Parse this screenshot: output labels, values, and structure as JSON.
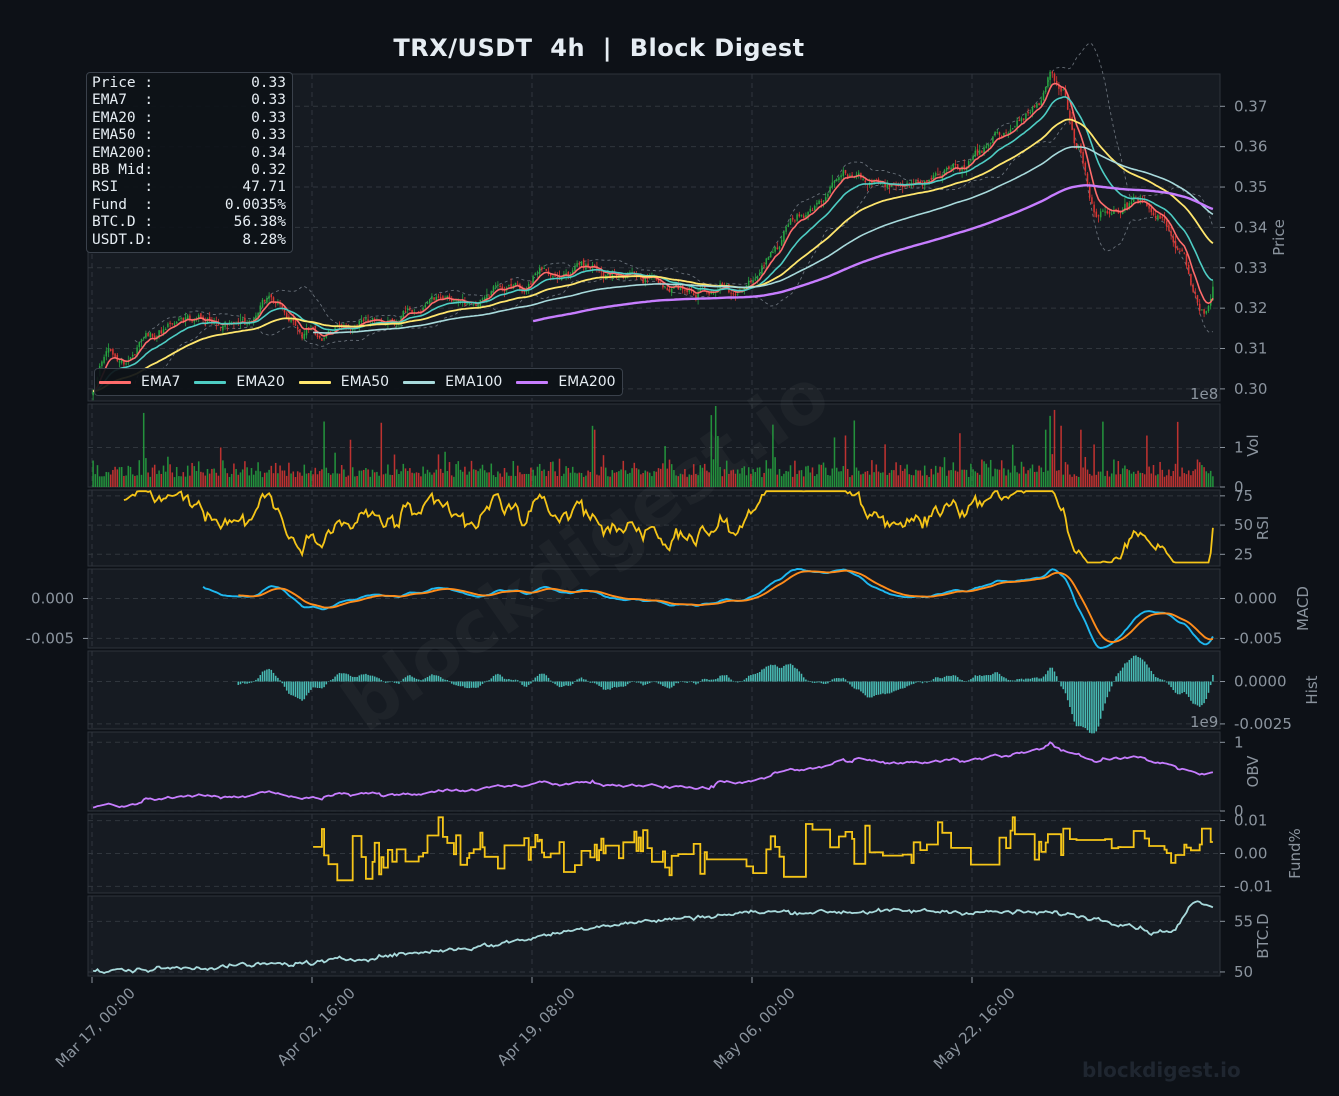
{
  "title": "TRX/USDT  4h  |  Block Digest",
  "watermark": "blockdigest.io",
  "diagonal_watermark": "blockdigest.io",
  "info_box": [
    {
      "label": "Price :",
      "value": "0.33"
    },
    {
      "label": "EMA7  :",
      "value": "0.33"
    },
    {
      "label": "EMA20 :",
      "value": "0.33"
    },
    {
      "label": "EMA50 :",
      "value": "0.33"
    },
    {
      "label": "EMA200:",
      "value": "0.34"
    },
    {
      "label": "BB Mid:",
      "value": "0.32"
    },
    {
      "label": "RSI   :",
      "value": "47.71"
    },
    {
      "label": "Fund  :",
      "value": "0.0035%"
    },
    {
      "label": "BTC.D :",
      "value": "56.38%"
    },
    {
      "label": "USDT.D:",
      "value": "8.28%"
    }
  ],
  "legend": [
    {
      "name": "EMA7",
      "color": "#ff6b6b"
    },
    {
      "name": "EMA20",
      "color": "#4ecdc4"
    },
    {
      "name": "EMA50",
      "color": "#ffe66d"
    },
    {
      "name": "EMA100",
      "color": "#a8dadc"
    },
    {
      "name": "EMA200",
      "color": "#c77dff"
    }
  ],
  "colors": {
    "background": "#0d1117",
    "panel": "#161b22",
    "grid": "#30363d",
    "text": "#8b949e",
    "up": "#26a641",
    "down": "#da3633",
    "rsi": "#f5c518",
    "macd": "#1fb8f0",
    "signal": "#ff8c1a",
    "hist": "#4ecdc4",
    "obv": "#c77dff",
    "funding": "#f5c518",
    "btcd": "#a8dadc"
  },
  "chart_data": {
    "type": "line",
    "x_axis": {
      "tick_labels": [
        "Mar 17, 00:00",
        "Apr 02, 16:00",
        "Apr 19, 08:00",
        "May 06, 00:00",
        "May 22, 16:00"
      ],
      "candle_count": 510,
      "tick_positions": [
        0,
        100,
        200,
        300,
        400
      ]
    },
    "panels": [
      {
        "name": "price",
        "ylabel": "Price",
        "ylim": [
          0.297,
          0.378
        ],
        "ticks": [
          0.3,
          0.31,
          0.32,
          0.33,
          0.34,
          0.35,
          0.36,
          0.37
        ],
        "tick_labels": [
          "0.30",
          "0.31",
          "0.32",
          "0.33",
          "0.34",
          "0.35",
          "0.36",
          "0.37"
        ],
        "close_anchors": [
          [
            0,
            0.299
          ],
          [
            5,
            0.309
          ],
          [
            15,
            0.306
          ],
          [
            25,
            0.312
          ],
          [
            40,
            0.316
          ],
          [
            55,
            0.318
          ],
          [
            70,
            0.317
          ],
          [
            80,
            0.323
          ],
          [
            88,
            0.319
          ],
          [
            95,
            0.316
          ],
          [
            110,
            0.316
          ],
          [
            130,
            0.316
          ],
          [
            150,
            0.319
          ],
          [
            170,
            0.32
          ],
          [
            190,
            0.325
          ],
          [
            210,
            0.328
          ],
          [
            225,
            0.331
          ],
          [
            235,
            0.328
          ],
          [
            245,
            0.33
          ],
          [
            260,
            0.324
          ],
          [
            275,
            0.325
          ],
          [
            290,
            0.324
          ],
          [
            300,
            0.326
          ],
          [
            310,
            0.335
          ],
          [
            320,
            0.343
          ],
          [
            330,
            0.347
          ],
          [
            340,
            0.351
          ],
          [
            360,
            0.351
          ],
          [
            375,
            0.351
          ],
          [
            395,
            0.356
          ],
          [
            410,
            0.362
          ],
          [
            420,
            0.366
          ],
          [
            430,
            0.371
          ],
          [
            435,
            0.377
          ],
          [
            440,
            0.372
          ],
          [
            448,
            0.361
          ],
          [
            455,
            0.345
          ],
          [
            465,
            0.343
          ],
          [
            475,
            0.347
          ],
          [
            485,
            0.342
          ],
          [
            495,
            0.335
          ],
          [
            500,
            0.326
          ],
          [
            505,
            0.32
          ],
          [
            510,
            0.327
          ]
        ],
        "legend_location": "lower-left",
        "exponent_label": "1e8"
      },
      {
        "name": "volume",
        "ylabel": "Vol",
        "ticks": [
          0,
          1
        ],
        "tick_labels": [
          "0",
          "1"
        ],
        "ylim": [
          0,
          2.1
        ]
      },
      {
        "name": "rsi",
        "ylabel": "RSI",
        "ticks": [
          25,
          50,
          75
        ],
        "tick_labels": [
          "25",
          "50",
          "75"
        ],
        "ylim": [
          15,
          80
        ],
        "last": 47.71
      },
      {
        "name": "macd",
        "ylabel": "MACD",
        "ticks": [
          0.0,
          -0.005
        ],
        "tick_labels": [
          "0.000",
          "-0.005"
        ],
        "ylim": [
          -0.0062,
          0.0037
        ],
        "series": [
          "MACD",
          "Signal"
        ]
      },
      {
        "name": "hist",
        "ylabel": "Hist",
        "ticks": [
          0.0,
          -0.0025
        ],
        "tick_labels": [
          "0.0000",
          "-0.0025"
        ],
        "ylim": [
          -0.0028,
          0.0018
        ],
        "exponent_label": "1e9"
      },
      {
        "name": "obv",
        "ylabel": "OBV",
        "ticks": [
          0,
          1
        ],
        "tick_labels": [
          "0",
          "1"
        ],
        "ylim": [
          0,
          1.15
        ]
      },
      {
        "name": "funding",
        "ylabel": "Fund%",
        "ticks": [
          -0.01,
          0.0,
          0.01
        ],
        "tick_labels": [
          "-0.01",
          "0.00",
          "0.01"
        ],
        "ylim": [
          -0.012,
          0.012
        ],
        "last": 0.0035
      },
      {
        "name": "btcd",
        "ylabel": "BTC.D",
        "ticks": [
          50,
          55
        ],
        "tick_labels": [
          "50",
          "55"
        ],
        "ylim": [
          49.6,
          57.5
        ],
        "last": 56.38
      }
    ]
  }
}
